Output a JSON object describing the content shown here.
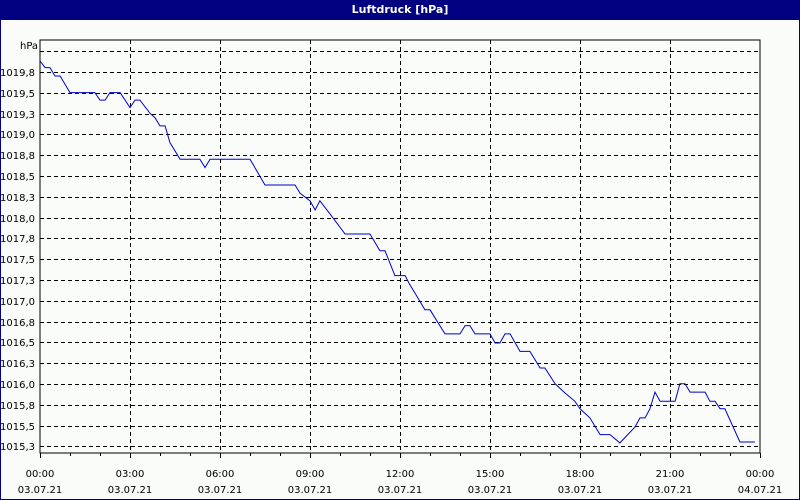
{
  "window": {
    "title": "Luftdruck [hPa]"
  },
  "chart_data": {
    "type": "line",
    "title": "Luftdruck [hPa]",
    "xlabel": "",
    "ylabel": "hPa",
    "ylim": [
      1015.1,
      1020.25
    ],
    "grid": true,
    "legend": null,
    "y_ticks": [
      "1019,8",
      "1019,5",
      "1019,3",
      "1019,0",
      "1018,8",
      "1018,5",
      "1018,3",
      "1018,0",
      "1017,8",
      "1017,5",
      "1017,3",
      "1017,0",
      "1016,8",
      "1016,5",
      "1016,3",
      "1016,0",
      "1015,8",
      "1015,5",
      "1015,3"
    ],
    "x_ticks": [
      {
        "time": "00:00",
        "date": "03.07.21"
      },
      {
        "time": "03:00",
        "date": "03.07.21"
      },
      {
        "time": "06:00",
        "date": "03.07.21"
      },
      {
        "time": "09:00",
        "date": "03.07.21"
      },
      {
        "time": "12:00",
        "date": "03.07.21"
      },
      {
        "time": "15:00",
        "date": "03.07.21"
      },
      {
        "time": "18:00",
        "date": "03.07.21"
      },
      {
        "time": "21:00",
        "date": "03.07.21"
      },
      {
        "time": "00:00",
        "date": "04.07.21"
      }
    ],
    "series": [
      {
        "name": "Luftdruck",
        "color": "#0000cc",
        "x_hours": [
          0,
          0.17,
          0.33,
          0.5,
          0.67,
          1.0,
          1.83,
          2.0,
          2.17,
          2.33,
          2.67,
          3.0,
          3.17,
          3.33,
          3.67,
          3.83,
          4.0,
          4.17,
          4.33,
          4.67,
          5.33,
          5.5,
          5.67,
          7.0,
          7.5,
          8.5,
          8.67,
          9.0,
          9.17,
          9.33,
          9.67,
          10.17,
          11.0,
          11.33,
          11.5,
          11.83,
          12.17,
          12.33,
          12.5,
          12.83,
          13.0,
          13.5,
          14.0,
          14.17,
          14.33,
          14.5,
          15.0,
          15.17,
          15.33,
          15.5,
          15.67,
          16.0,
          16.33,
          16.67,
          16.83,
          17.17,
          17.5,
          17.83,
          18.0,
          18.33,
          18.67,
          19.0,
          19.33,
          19.83,
          20.0,
          20.17,
          20.33,
          20.5,
          20.67,
          21.17,
          21.33,
          21.5,
          21.67,
          22.17,
          22.33,
          22.5,
          22.67,
          22.83,
          23.33,
          23.83
        ],
        "values": [
          1019.88,
          1019.8,
          1019.8,
          1019.7,
          1019.7,
          1019.5,
          1019.5,
          1019.41,
          1019.41,
          1019.5,
          1019.5,
          1019.32,
          1019.41,
          1019.41,
          1019.25,
          1019.2,
          1019.1,
          1019.1,
          1018.9,
          1018.7,
          1018.7,
          1018.6,
          1018.7,
          1018.7,
          1018.39,
          1018.39,
          1018.29,
          1018.2,
          1018.09,
          1018.2,
          1018.04,
          1017.8,
          1017.8,
          1017.6,
          1017.6,
          1017.3,
          1017.3,
          1017.19,
          1017.09,
          1016.89,
          1016.89,
          1016.6,
          1016.6,
          1016.7,
          1016.7,
          1016.6,
          1016.6,
          1016.49,
          1016.49,
          1016.6,
          1016.6,
          1016.39,
          1016.39,
          1016.19,
          1016.19,
          1016.0,
          1015.89,
          1015.79,
          1015.7,
          1015.59,
          1015.39,
          1015.39,
          1015.29,
          1015.48,
          1015.59,
          1015.59,
          1015.7,
          1015.9,
          1015.79,
          1015.79,
          1016.0,
          1016.0,
          1015.9,
          1015.9,
          1015.79,
          1015.79,
          1015.7,
          1015.7,
          1015.3,
          1015.3
        ]
      }
    ]
  }
}
